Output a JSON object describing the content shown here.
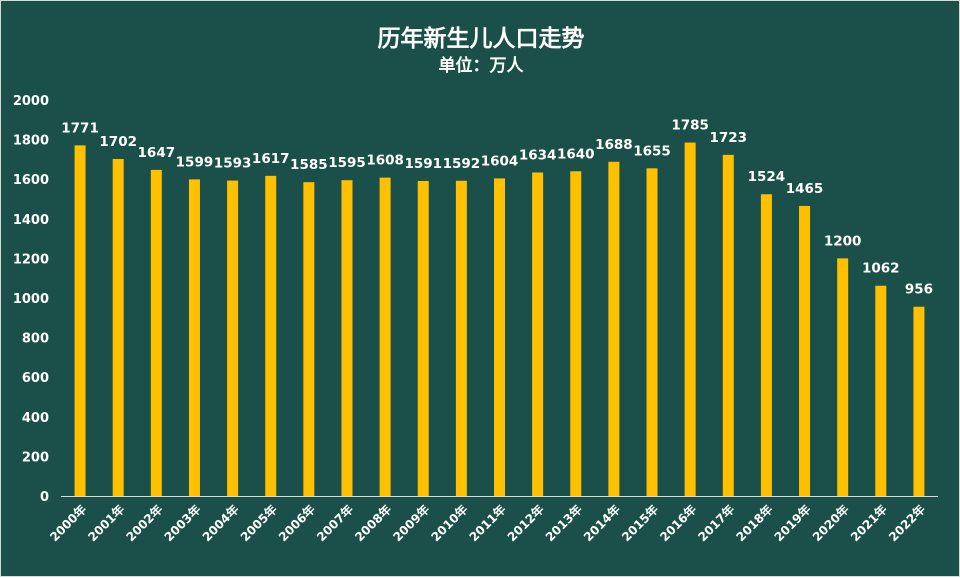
{
  "chart_data": {
    "type": "bar",
    "title": "历年新生儿人口走势",
    "subtitle": "单位：万人",
    "categories": [
      "2000年",
      "2001年",
      "2002年",
      "2003年",
      "2004年",
      "2005年",
      "2006年",
      "2007年",
      "2008年",
      "2009年",
      "2010年",
      "2011年",
      "2012年",
      "2013年",
      "2014年",
      "2015年",
      "2016年",
      "2017年",
      "2018年",
      "2019年",
      "2020年",
      "2021年",
      "2022年"
    ],
    "values": [
      1771,
      1702,
      1647,
      1599,
      1593,
      1617,
      1585,
      1595,
      1608,
      1591,
      1592,
      1604,
      1634,
      1640,
      1688,
      1655,
      1785,
      1723,
      1524,
      1465,
      1200,
      1062,
      956
    ],
    "ylim": [
      0,
      2000
    ],
    "yticks": [
      0,
      200,
      400,
      600,
      800,
      1000,
      1200,
      1400,
      1600,
      1800,
      2000
    ],
    "grid": false,
    "legend": "none",
    "xlabel": "",
    "ylabel": "",
    "bar_color": "#ffc000",
    "background_color": "#1b4f49",
    "text_color": "#ffffff"
  }
}
